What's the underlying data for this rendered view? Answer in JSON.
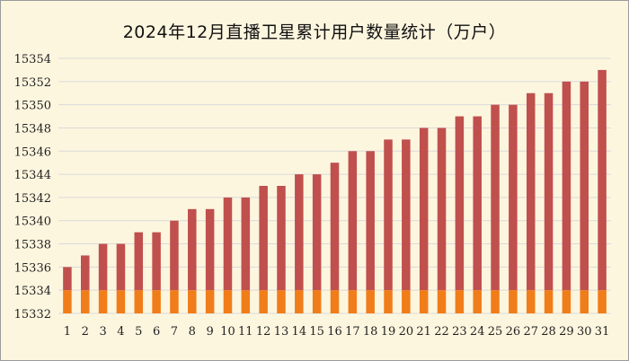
{
  "chart_data": {
    "type": "bar",
    "title": "2024年12月直播卫星累计用户数量统计（万户）",
    "xlabel": "",
    "ylabel": "",
    "categories": [
      "1",
      "2",
      "3",
      "4",
      "5",
      "6",
      "7",
      "8",
      "9",
      "10",
      "11",
      "12",
      "13",
      "14",
      "15",
      "16",
      "17",
      "18",
      "19",
      "20",
      "21",
      "22",
      "23",
      "24",
      "25",
      "26",
      "27",
      "28",
      "29",
      "30",
      "31"
    ],
    "values": [
      15336,
      15337,
      15338,
      15338,
      15339,
      15339,
      15340,
      15341,
      15341,
      15342,
      15342,
      15343,
      15343,
      15344,
      15344,
      15345,
      15346,
      15346,
      15347,
      15347,
      15348,
      15348,
      15349,
      15349,
      15350,
      15350,
      15351,
      15351,
      15352,
      15352,
      15353
    ],
    "ylim": [
      15332,
      15354
    ],
    "yticks": [
      15332,
      15334,
      15336,
      15338,
      15340,
      15342,
      15344,
      15346,
      15348,
      15350,
      15352,
      15354
    ],
    "grid": true,
    "legend": "none",
    "colors": {
      "bar_top": "#c0504d",
      "bar_base": "#f07d1a",
      "grid": "#d9d9d9",
      "background": "#fdf6df"
    }
  }
}
